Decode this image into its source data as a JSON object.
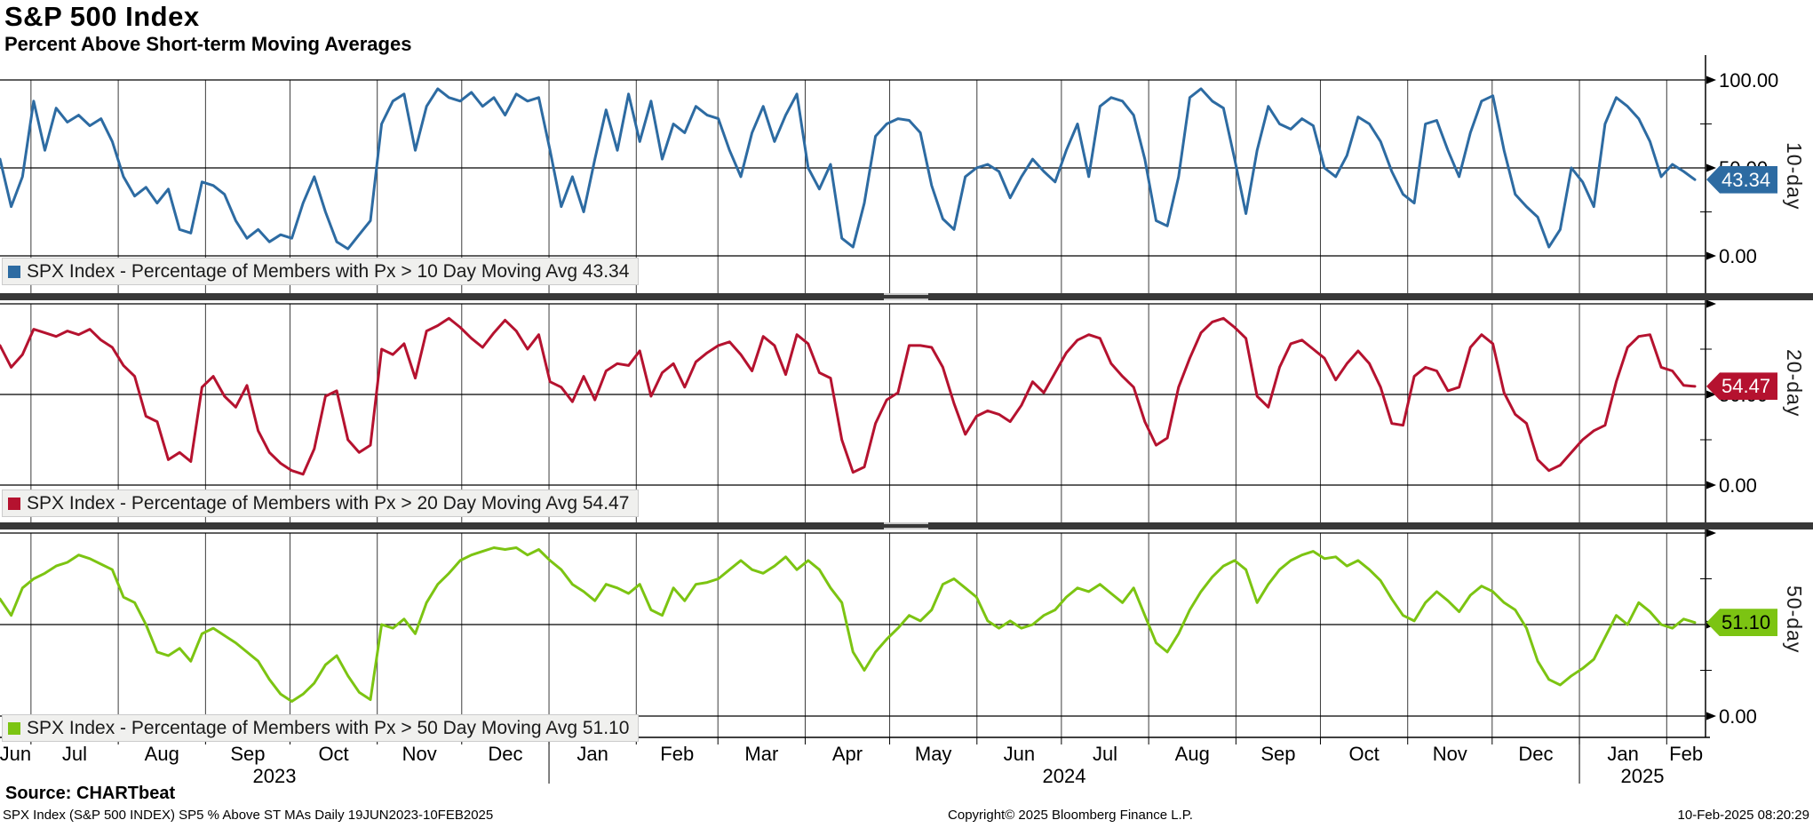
{
  "header": {
    "title": "S&P 500 Index",
    "subtitle": "Percent Above Short-term Moving Averages"
  },
  "footer": {
    "source": "Source: CHARTbeat",
    "detail": "SPX Index (S&P 500 INDEX) SP5 % Above ST MAs  Daily 19JUN2023-10FEB2025",
    "copyright": "Copyright© 2025 Bloomberg Finance L.P.",
    "timestamp": "10-Feb-2025 08:20:29"
  },
  "chart_data": {
    "type": "line",
    "title": "S&P 500 Index - Percent Above Short-term Moving Averages",
    "x_range": [
      "19JUN2023",
      "10FEB2025"
    ],
    "ylim": [
      0,
      100
    ],
    "y_ticks": [
      0,
      50,
      100
    ],
    "grid": true,
    "month_labels": [
      "Jun",
      "Jul",
      "Aug",
      "Sep",
      "Oct",
      "Nov",
      "Dec",
      "Jan",
      "Feb",
      "Mar",
      "Apr",
      "May",
      "Jun",
      "Jul",
      "Aug",
      "Sep",
      "Oct",
      "Nov",
      "Dec",
      "Jan",
      "Feb"
    ],
    "month_days": [
      11,
      31,
      31,
      30,
      31,
      30,
      31,
      31,
      29,
      31,
      30,
      31,
      30,
      31,
      31,
      30,
      31,
      30,
      31,
      31,
      10
    ],
    "year_labels": [
      "2023",
      "2024",
      "2025"
    ],
    "year_boundaries_days": [
      195,
      561
    ],
    "panels": [
      {
        "id": "panel-10-day",
        "axis_title": "10-day",
        "legend": "SPX Index - Percentage of Members with Px > 10 Day Moving Avg 43.34",
        "value": "43.34",
        "last_value_num": 43.34,
        "color": "#2d6ba2",
        "badge_text_color": "#ffffff",
        "tick_labels": [
          "100.00",
          "50.00",
          "0.00"
        ],
        "values": [
          55,
          28,
          45,
          88,
          60,
          84,
          76,
          80,
          74,
          78,
          65,
          45,
          34,
          39,
          30,
          38,
          15,
          13,
          42,
          40,
          35,
          20,
          10,
          15,
          8,
          12,
          10,
          30,
          45,
          25,
          8,
          4,
          12,
          20,
          75,
          88,
          92,
          60,
          85,
          95,
          90,
          88,
          93,
          85,
          90,
          80,
          92,
          88,
          90,
          60,
          28,
          45,
          25,
          55,
          83,
          60,
          92,
          65,
          88,
          55,
          75,
          70,
          85,
          80,
          78,
          60,
          45,
          70,
          85,
          65,
          80,
          92,
          50,
          38,
          52,
          10,
          5,
          30,
          68,
          75,
          78,
          77,
          70,
          40,
          21,
          15,
          45,
          50,
          52,
          48,
          33,
          45,
          55,
          48,
          42,
          60,
          75,
          45,
          85,
          90,
          88,
          80,
          55,
          20,
          17,
          45,
          90,
          95,
          88,
          84,
          55,
          24,
          60,
          85,
          75,
          72,
          78,
          74,
          50,
          45,
          57,
          79,
          75,
          65,
          48,
          35,
          30,
          75,
          77,
          60,
          45,
          70,
          88,
          91,
          60,
          35,
          28,
          22,
          5,
          15,
          50,
          42,
          28,
          75,
          90,
          85,
          78,
          65,
          45,
          52,
          48,
          43.34
        ]
      },
      {
        "id": "panel-20-day",
        "axis_title": "20-day",
        "legend": "SPX Index - Percentage of Members with Px > 20 Day Moving Avg 54.47",
        "value": "54.47",
        "last_value_num": 54.47,
        "color": "#b5122f",
        "badge_text_color": "#ffffff",
        "tick_labels": [
          "",
          "50.00",
          "0.00"
        ],
        "values": [
          77,
          65,
          72,
          86,
          84,
          82,
          85,
          83,
          86,
          80,
          76,
          66,
          60,
          38,
          35,
          14,
          18,
          13,
          54,
          60,
          49,
          43,
          55,
          30,
          18,
          12,
          8,
          6,
          20,
          49,
          52,
          25,
          18,
          22,
          75,
          72,
          78,
          59,
          85,
          88,
          92,
          87,
          81,
          76,
          84,
          91,
          85,
          75,
          83,
          57,
          54,
          46,
          60,
          47,
          63,
          67,
          66,
          74,
          49,
          62,
          67,
          54,
          68,
          73,
          77,
          79,
          72,
          63,
          82,
          77,
          61,
          83,
          78,
          62,
          59,
          25,
          7,
          10,
          34,
          47,
          51,
          77,
          77,
          76,
          65,
          45,
          28,
          38,
          41,
          39,
          35,
          44,
          57,
          51,
          62,
          73,
          80,
          83,
          81,
          67,
          60,
          54,
          35,
          22,
          26,
          54,
          70,
          84,
          90,
          92,
          87,
          81,
          49,
          43,
          65,
          78,
          80,
          75,
          70,
          58,
          67,
          74,
          67,
          54,
          34,
          33,
          60,
          65,
          63,
          52,
          54,
          76,
          83,
          78,
          51,
          39,
          34,
          14,
          8,
          11,
          18,
          25,
          30,
          33,
          57,
          76,
          82,
          83,
          65,
          63,
          55,
          54.47
        ]
      },
      {
        "id": "panel-50-day",
        "axis_title": "50-day",
        "legend": "SPX Index - Percentage of Members with Px > 50 Day Moving Avg 51.10",
        "value": "51.10",
        "last_value_num": 51.1,
        "color": "#7cc412",
        "badge_text_color": "#000000",
        "tick_labels": [
          "",
          "50.00",
          "0.00"
        ],
        "values": [
          64,
          55,
          70,
          75,
          78,
          82,
          84,
          88,
          86,
          83,
          80,
          65,
          62,
          50,
          35,
          33,
          37,
          30,
          45,
          48,
          44,
          40,
          35,
          30,
          20,
          12,
          8,
          12,
          18,
          28,
          33,
          22,
          13,
          9,
          50,
          48,
          53,
          45,
          62,
          72,
          78,
          85,
          88,
          90,
          92,
          91,
          92,
          88,
          91,
          85,
          80,
          72,
          68,
          63,
          72,
          70,
          67,
          72,
          58,
          55,
          70,
          63,
          72,
          73,
          75,
          80,
          85,
          80,
          78,
          82,
          87,
          80,
          85,
          80,
          70,
          62,
          35,
          25,
          35,
          42,
          48,
          55,
          52,
          58,
          72,
          75,
          70,
          65,
          52,
          48,
          52,
          48,
          50,
          55,
          58,
          65,
          70,
          68,
          72,
          67,
          62,
          70,
          55,
          40,
          35,
          45,
          58,
          68,
          76,
          82,
          85,
          80,
          62,
          72,
          80,
          85,
          88,
          90,
          86,
          87,
          82,
          85,
          80,
          74,
          64,
          55,
          52,
          62,
          68,
          63,
          57,
          66,
          71,
          68,
          62,
          58,
          48,
          30,
          20,
          17,
          22,
          26,
          31,
          43,
          55,
          50,
          62,
          57,
          50,
          48,
          53,
          51.1
        ]
      }
    ]
  }
}
